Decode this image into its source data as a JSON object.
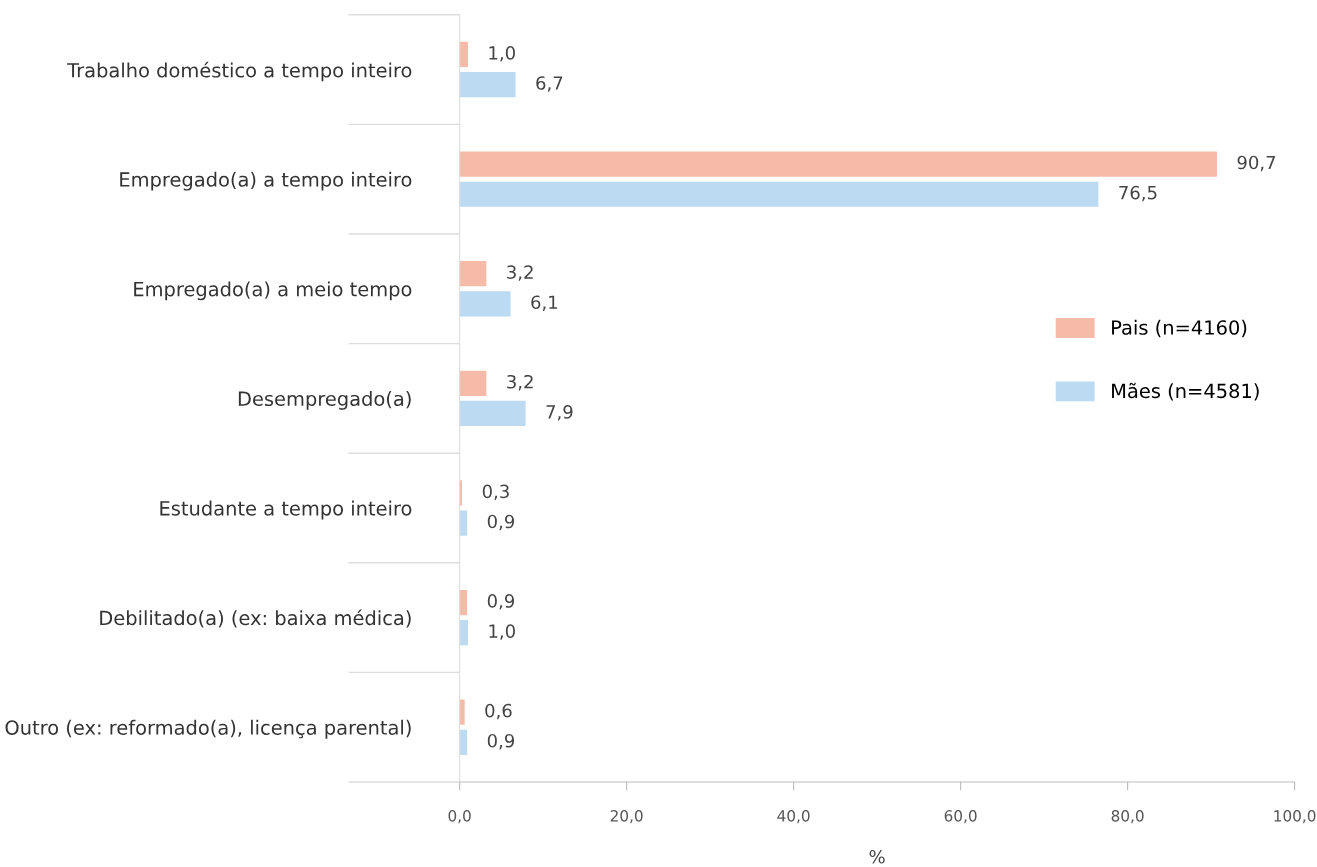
{
  "chart_data": {
    "type": "bar",
    "orientation": "horizontal",
    "xlabel": "%",
    "categories": [
      "Trabalho doméstico a tempo inteiro",
      "Empregado(a) a tempo inteiro",
      "Empregado(a) a meio tempo",
      "Desempregado(a)",
      "Estudante a tempo inteiro",
      "Debilitado(a) (ex: baixa médica)",
      "Outro (ex: reformado(a), licença parental)"
    ],
    "series": [
      {
        "name": "Pais (n=4160)",
        "color": "#f5bba8",
        "values": [
          1.0,
          90.7,
          3.2,
          3.2,
          0.3,
          0.9,
          0.6
        ],
        "value_labels": [
          "1,0",
          "90,7",
          "3,2",
          "3,2",
          "0,3",
          "0,9",
          "0,6"
        ]
      },
      {
        "name": "Mães (n=4581)",
        "color": "#bcdaf1",
        "values": [
          6.7,
          76.5,
          6.1,
          7.9,
          0.9,
          1.0,
          0.9
        ],
        "value_labels": [
          "6,7",
          "76,5",
          "6,1",
          "7,9",
          "0,9",
          "1,0",
          "0,9"
        ]
      }
    ],
    "xlim": [
      0,
      100
    ],
    "xticks": [
      {
        "value": 0,
        "label": "0,0"
      },
      {
        "value": 20,
        "label": "20,0"
      },
      {
        "value": 40,
        "label": "40,0"
      },
      {
        "value": 60,
        "label": "60,0"
      },
      {
        "value": 80,
        "label": "80,0"
      },
      {
        "value": 100,
        "label": "100,0"
      }
    ],
    "grid": false,
    "legend": "right"
  }
}
